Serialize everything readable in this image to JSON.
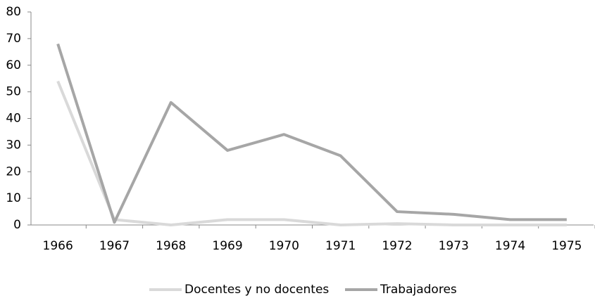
{
  "chart_data": {
    "type": "line",
    "categories": [
      "1966",
      "1967",
      "1968",
      "1969",
      "1970",
      "1971",
      "1972",
      "1973",
      "1974",
      "1975"
    ],
    "series": [
      {
        "name": "Docentes y no docentes",
        "color": "#d9d9d9",
        "values": [
          54,
          2,
          0,
          2,
          2,
          0,
          0.5,
          0,
          0,
          0
        ]
      },
      {
        "name": "Trabajadores",
        "color": "#a6a6a6",
        "values": [
          68,
          1,
          46,
          28,
          34,
          26,
          5,
          4,
          2,
          2
        ]
      }
    ],
    "ylim": [
      0,
      80
    ],
    "yticks": [
      0,
      10,
      20,
      30,
      40,
      50,
      60,
      70,
      80
    ],
    "grid": false,
    "legend": "bottom"
  }
}
